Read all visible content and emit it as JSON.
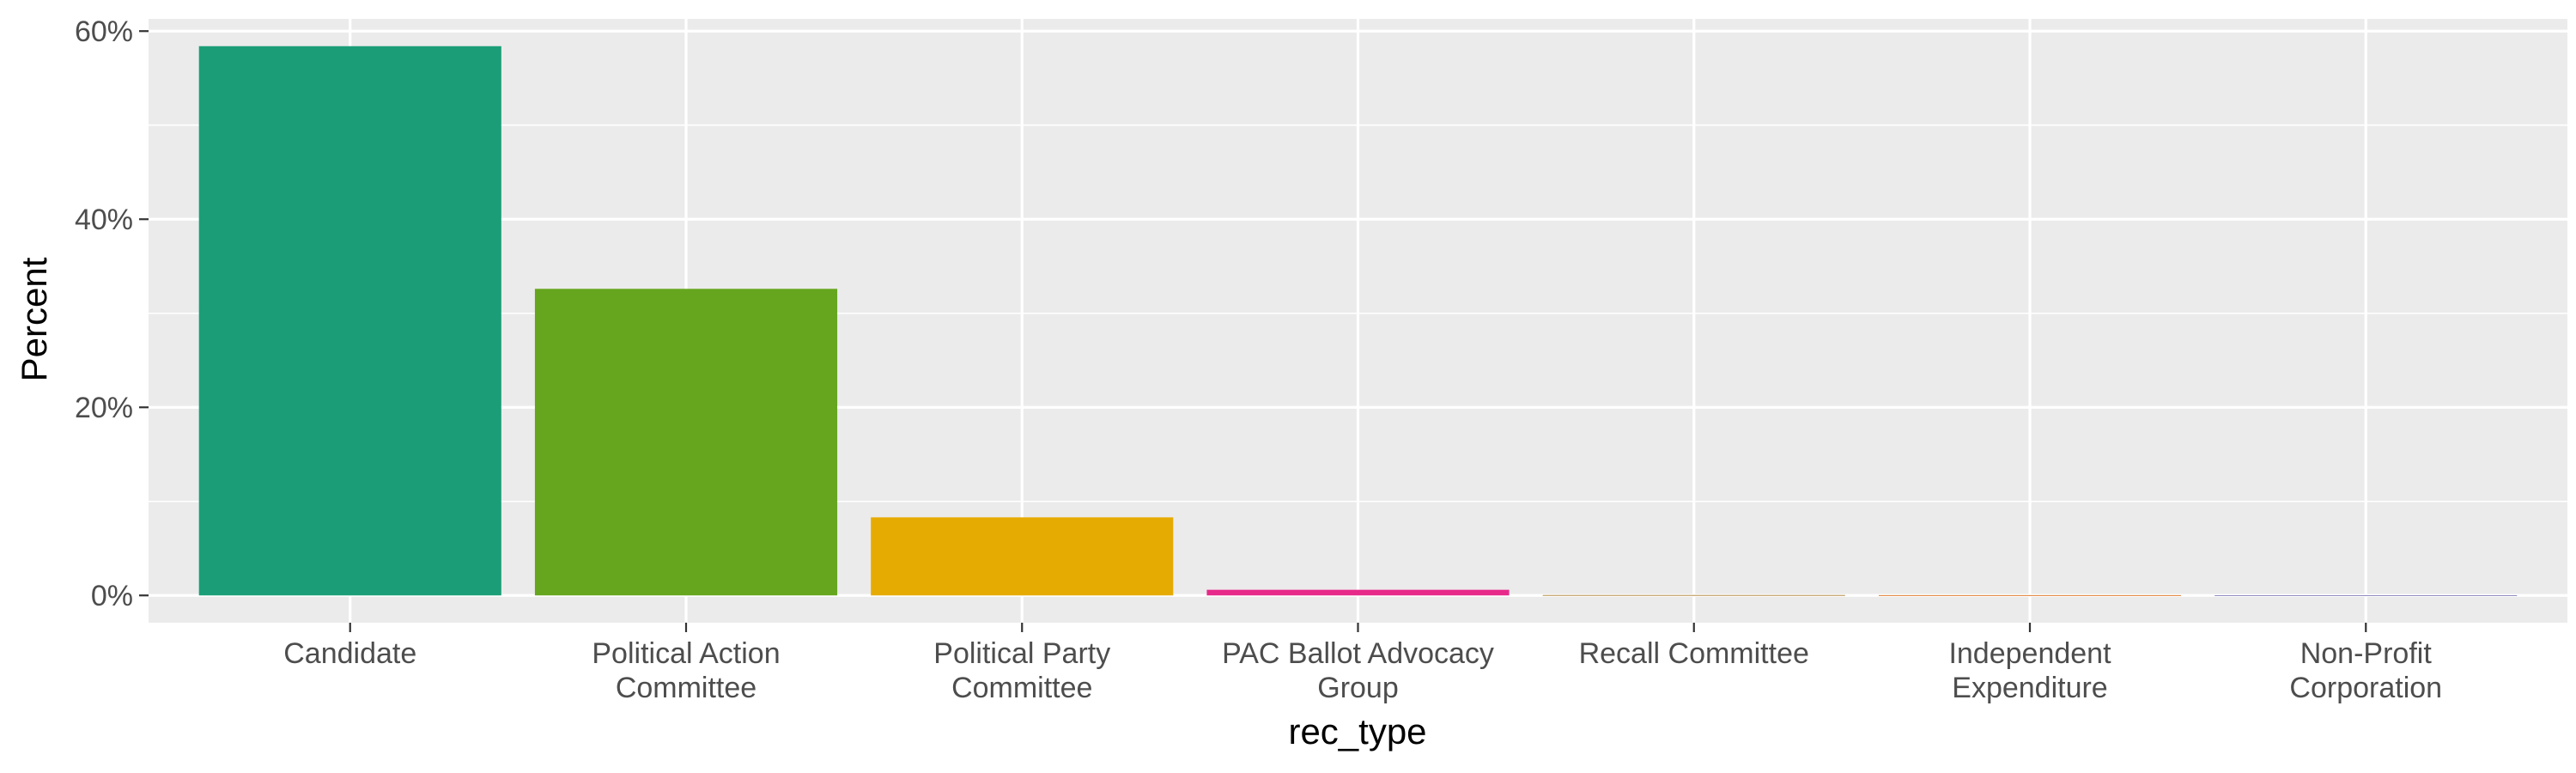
{
  "chart_data": {
    "type": "bar",
    "title": "",
    "xlabel": "rec_type",
    "ylabel": "Percent",
    "categories": [
      [
        "Candidate"
      ],
      [
        "Political Action",
        "Committee"
      ],
      [
        "Political Party",
        "Committee"
      ],
      [
        "PAC Ballot Advocacy",
        "Group"
      ],
      [
        "Recall Committee"
      ],
      [
        "Independent",
        "Expenditure"
      ],
      [
        "Non-Profit",
        "Corporation"
      ]
    ],
    "values": [
      58.4,
      32.6,
      8.3,
      0.6,
      0.04,
      0.03,
      0.02
    ],
    "colors": [
      "#1b9e77",
      "#66a61e",
      "#e6ab02",
      "#e7298a",
      "#a6761d",
      "#d95f02",
      "#7570b3"
    ],
    "ylim": [
      -2.9,
      61.3
    ],
    "yticks": [
      0,
      20,
      40,
      60
    ],
    "ytick_labels": [
      "0%",
      "20%",
      "40%",
      "60%"
    ],
    "grid": true,
    "panel_background": "#ebebeb",
    "legend": "none"
  }
}
